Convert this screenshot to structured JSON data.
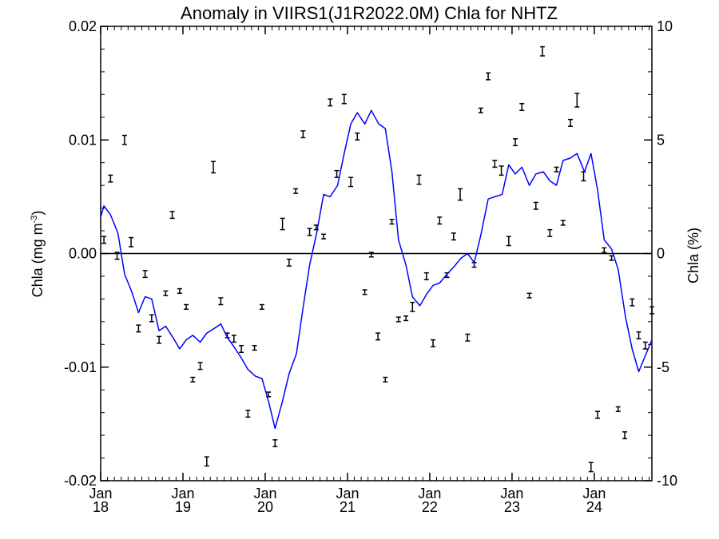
{
  "chart_data": {
    "type": "line",
    "title": "Anomaly in VIIRS1(J1R2022.0M) Chla for NHTZ",
    "ylabel_left": "Chla (mg m",
    "ylabel_left_exponent": "-3",
    "ylabel_left_close": ")",
    "ylabel_right": "Chla (%)",
    "xlim": [
      2018.0,
      2024.7
    ],
    "ylim_left": [
      -0.02,
      0.02
    ],
    "ylim_right": [
      -10,
      10
    ],
    "grid": false,
    "zero_line": true,
    "x_ticks": [
      {
        "month": "Jan",
        "year": "18",
        "value": 2018.0
      },
      {
        "month": "Jan",
        "year": "19",
        "value": 2019.0
      },
      {
        "month": "Jan",
        "year": "20",
        "value": 2020.0
      },
      {
        "month": "Jan",
        "year": "21",
        "value": 2021.0
      },
      {
        "month": "Jan",
        "year": "22",
        "value": 2022.0
      },
      {
        "month": "Jan",
        "year": "23",
        "value": 2023.0
      },
      {
        "month": "Jan",
        "year": "24",
        "value": 2024.0
      }
    ],
    "y_ticks_left": [
      {
        "label": "0.02",
        "value": 0.02
      },
      {
        "label": "0.01",
        "value": 0.01
      },
      {
        "label": "0.00",
        "value": 0.0
      },
      {
        "label": "-0.01",
        "value": -0.01
      },
      {
        "label": "-0.02",
        "value": -0.02
      }
    ],
    "y_ticks_right": [
      {
        "label": "10",
        "value": 10
      },
      {
        "label": "5",
        "value": 5
      },
      {
        "label": "0",
        "value": 0
      },
      {
        "label": "-5",
        "value": -5
      },
      {
        "label": "-10",
        "value": -10
      }
    ],
    "series": [
      {
        "type": "line",
        "axis": "right",
        "color": "#0000ff",
        "x": [
          2018.0,
          2018.04,
          2018.08,
          2018.12,
          2018.21,
          2018.29,
          2018.38,
          2018.46,
          2018.54,
          2018.62,
          2018.71,
          2018.79,
          2018.88,
          2018.96,
          2019.04,
          2019.12,
          2019.21,
          2019.29,
          2019.38,
          2019.46,
          2019.54,
          2019.62,
          2019.71,
          2019.79,
          2019.88,
          2019.96,
          2020.04,
          2020.12,
          2020.21,
          2020.29,
          2020.38,
          2020.46,
          2020.54,
          2020.62,
          2020.71,
          2020.79,
          2020.88,
          2020.96,
          2021.04,
          2021.12,
          2021.21,
          2021.29,
          2021.38,
          2021.46,
          2021.54,
          2021.62,
          2021.71,
          2021.79,
          2021.88,
          2021.96,
          2022.04,
          2022.12,
          2022.21,
          2022.29,
          2022.38,
          2022.46,
          2022.54,
          2022.62,
          2022.71,
          2022.79,
          2022.88,
          2022.96,
          2023.04,
          2023.12,
          2023.21,
          2023.29,
          2023.38,
          2023.46,
          2023.54,
          2023.62,
          2023.71,
          2023.79,
          2023.88,
          2023.96,
          2024.04,
          2024.12,
          2024.21,
          2024.29,
          2024.38,
          2024.46,
          2024.54,
          2024.62,
          2024.7
        ],
        "y": [
          1.6,
          2.1,
          1.9,
          1.7,
          0.9,
          -0.9,
          -1.7,
          -2.6,
          -1.9,
          -2.0,
          -3.4,
          -3.2,
          -3.7,
          -4.2,
          -3.8,
          -3.6,
          -3.9,
          -3.5,
          -3.3,
          -3.1,
          -3.7,
          -4.1,
          -4.6,
          -5.1,
          -5.4,
          -5.5,
          -6.5,
          -7.7,
          -6.5,
          -5.3,
          -4.4,
          -2.4,
          -0.5,
          0.8,
          2.6,
          2.5,
          3.0,
          4.4,
          5.7,
          6.2,
          5.7,
          6.3,
          5.7,
          5.5,
          3.6,
          0.6,
          -0.5,
          -1.9,
          -2.3,
          -1.8,
          -1.4,
          -1.3,
          -0.9,
          -0.6,
          -0.2,
          0.0,
          -0.4,
          0.8,
          2.4,
          2.5,
          2.6,
          3.9,
          3.5,
          3.8,
          3.0,
          3.5,
          3.6,
          3.2,
          3.0,
          4.1,
          4.2,
          4.4,
          3.6,
          4.4,
          2.8,
          0.6,
          0.2,
          -0.7,
          -2.8,
          -4.2,
          -5.2,
          -4.5,
          -3.8
        ]
      },
      {
        "type": "errorbar_scatter",
        "axis": "left",
        "color": "#000000",
        "x": [
          2018.04,
          2018.12,
          2018.2,
          2018.29,
          2018.37,
          2018.46,
          2018.54,
          2018.62,
          2018.71,
          2018.79,
          2018.87,
          2018.96,
          2019.04,
          2019.12,
          2019.21,
          2019.29,
          2019.37,
          2019.46,
          2019.54,
          2019.62,
          2019.71,
          2019.79,
          2019.87,
          2019.96,
          2020.04,
          2020.12,
          2020.21,
          2020.29,
          2020.37,
          2020.46,
          2020.54,
          2020.62,
          2020.71,
          2020.79,
          2020.87,
          2020.96,
          2021.04,
          2021.12,
          2021.21,
          2021.29,
          2021.37,
          2021.46,
          2021.54,
          2021.62,
          2021.71,
          2021.79,
          2021.87,
          2021.96,
          2022.04,
          2022.12,
          2022.21,
          2022.29,
          2022.37,
          2022.46,
          2022.54,
          2022.62,
          2022.71,
          2022.79,
          2022.87,
          2022.96,
          2023.04,
          2023.12,
          2023.21,
          2023.29,
          2023.37,
          2023.46,
          2023.54,
          2023.62,
          2023.71,
          2023.79,
          2023.87,
          2023.96,
          2024.04,
          2024.12,
          2024.21,
          2024.29,
          2024.37,
          2024.46,
          2024.54,
          2024.62,
          2024.7
        ],
        "y": [
          0.0012,
          0.0066,
          -0.0002,
          0.01,
          0.001,
          -0.0066,
          -0.0018,
          -0.0057,
          -0.0076,
          -0.0035,
          0.0034,
          -0.0033,
          -0.0047,
          -0.0111,
          -0.0099,
          -0.0183,
          0.0076,
          -0.0042,
          -0.0072,
          -0.0075,
          -0.0084,
          -0.0141,
          -0.0083,
          -0.0047,
          -0.0124,
          -0.0167,
          0.0026,
          -0.0008,
          0.0055,
          0.0105,
          0.0019,
          0.0023,
          0.0015,
          0.0133,
          0.007,
          0.0136,
          0.0063,
          0.0103,
          -0.0034,
          -0.0001,
          -0.0073,
          -0.0111,
          0.0028,
          -0.0058,
          -0.0057,
          -0.0047,
          0.0065,
          -0.002,
          -0.0079,
          0.0029,
          -0.0019,
          0.0015,
          0.0052,
          -0.0074,
          -0.001,
          0.0126,
          0.0156,
          0.0079,
          0.0073,
          0.0011,
          0.0098,
          0.0129,
          -0.0037,
          0.0042,
          0.0178,
          0.0018,
          0.0074,
          0.0027,
          0.0115,
          0.0135,
          0.0068,
          -0.0188,
          -0.0142,
          0.0003,
          -0.0004,
          -0.0137,
          -0.016,
          -0.0043,
          -0.0072,
          -0.0081,
          -0.005
        ],
        "err": [
          0.0003,
          0.0003,
          0.0003,
          0.0004,
          0.0004,
          0.0003,
          0.0003,
          0.0003,
          0.0003,
          0.0002,
          0.0003,
          0.0002,
          0.0002,
          0.0002,
          0.0003,
          0.0004,
          0.0005,
          0.0003,
          0.0002,
          0.0003,
          0.0003,
          0.0003,
          0.0002,
          0.0002,
          0.0002,
          0.0003,
          0.0005,
          0.0003,
          0.0002,
          0.0003,
          0.0003,
          0.0002,
          0.0002,
          0.0003,
          0.0003,
          0.0004,
          0.0004,
          0.0003,
          0.0002,
          0.0002,
          0.0003,
          0.0002,
          0.0002,
          0.0002,
          0.0002,
          0.0004,
          0.0004,
          0.0003,
          0.0003,
          0.0003,
          0.0002,
          0.0003,
          0.0005,
          0.0003,
          0.0002,
          0.0002,
          0.0003,
          0.0003,
          0.0004,
          0.0004,
          0.0003,
          0.0003,
          0.0002,
          0.0003,
          0.0004,
          0.0003,
          0.0002,
          0.0002,
          0.0003,
          0.0006,
          0.0004,
          0.0004,
          0.0003,
          0.0002,
          0.0002,
          0.0002,
          0.0003,
          0.0003,
          0.0003,
          0.0003,
          0.0003
        ]
      }
    ]
  }
}
